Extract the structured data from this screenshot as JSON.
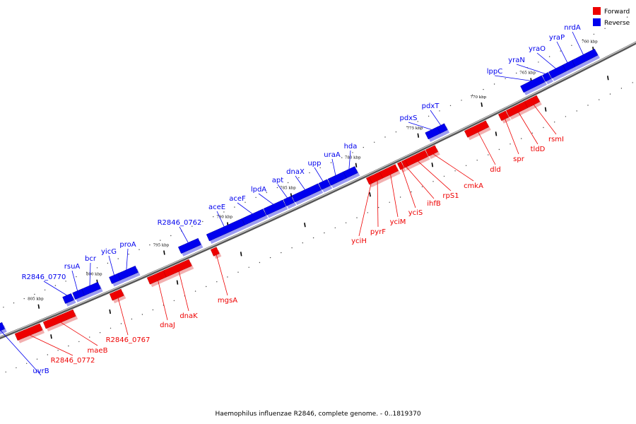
{
  "legend": {
    "forward": {
      "label": "Forward",
      "color": "#ee0000"
    },
    "reverse": {
      "label": "Reverse",
      "color": "#0000ee"
    }
  },
  "caption": "Haemophilus influenzae R2846, complete genome. - 0..1819370",
  "chart_data": {
    "type": "genome_map",
    "genome_range": [
      0,
      1819370
    ],
    "visible_range_kbp": [
      808,
      758
    ],
    "tick_labels": [
      "760 kbp",
      "765 kbp",
      "770 kbp",
      "775 kbp",
      "780 kbp",
      "785 kbp",
      "790 kbp",
      "795 kbp",
      "800 kbp",
      "805 kbp"
    ],
    "genes": [
      {
        "name": "uvrB",
        "strand": "reverse"
      },
      {
        "name": "R2846_0772",
        "strand": "forward"
      },
      {
        "name": "maeB",
        "strand": "forward"
      },
      {
        "name": "R2846_0770",
        "strand": "reverse"
      },
      {
        "name": "rsuA",
        "strand": "reverse"
      },
      {
        "name": "bcr",
        "strand": "reverse"
      },
      {
        "name": "R2846_0767",
        "strand": "forward"
      },
      {
        "name": "yicG",
        "strand": "reverse"
      },
      {
        "name": "proA",
        "strand": "reverse"
      },
      {
        "name": "dnaJ",
        "strand": "forward"
      },
      {
        "name": "dnaK",
        "strand": "forward"
      },
      {
        "name": "R2846_0762",
        "strand": "reverse"
      },
      {
        "name": "mgsA",
        "strand": "forward"
      },
      {
        "name": "aceE",
        "strand": "reverse"
      },
      {
        "name": "aceF",
        "strand": "reverse"
      },
      {
        "name": "lpdA",
        "strand": "reverse"
      },
      {
        "name": "apt",
        "strand": "reverse"
      },
      {
        "name": "dnaX",
        "strand": "reverse"
      },
      {
        "name": "upp",
        "strand": "reverse"
      },
      {
        "name": "uraA",
        "strand": "reverse"
      },
      {
        "name": "hda",
        "strand": "reverse"
      },
      {
        "name": "yciH",
        "strand": "forward"
      },
      {
        "name": "pyrF",
        "strand": "forward"
      },
      {
        "name": "yciM",
        "strand": "forward"
      },
      {
        "name": "yciS",
        "strand": "forward"
      },
      {
        "name": "ihfB",
        "strand": "forward"
      },
      {
        "name": "rpS1",
        "strand": "forward"
      },
      {
        "name": "cmkA",
        "strand": "forward"
      },
      {
        "name": "pdxS",
        "strand": "reverse"
      },
      {
        "name": "pdxT",
        "strand": "reverse"
      },
      {
        "name": "dld",
        "strand": "forward"
      },
      {
        "name": "spr",
        "strand": "forward"
      },
      {
        "name": "tldD",
        "strand": "forward"
      },
      {
        "name": "rsmI",
        "strand": "forward"
      },
      {
        "name": "lppC",
        "strand": "reverse"
      },
      {
        "name": "yraN",
        "strand": "reverse"
      },
      {
        "name": "yraO",
        "strand": "reverse"
      },
      {
        "name": "yraP",
        "strand": "reverse"
      },
      {
        "name": "nrdA",
        "strand": "reverse"
      }
    ]
  }
}
